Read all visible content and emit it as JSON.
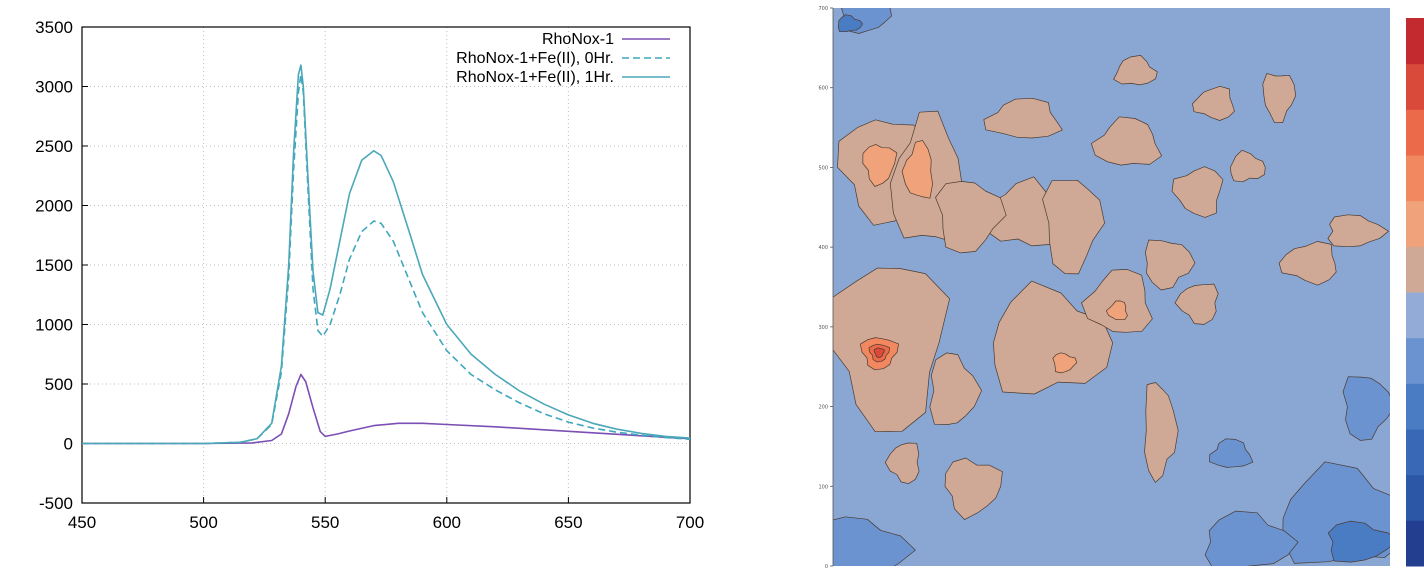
{
  "chart_data": [
    {
      "type": "line",
      "title": "",
      "xlabel": "",
      "ylabel": "",
      "xlim": [
        450,
        700
      ],
      "ylim": [
        -500,
        3500
      ],
      "grid": true,
      "legend_position": "top-right",
      "x_ticks": [
        "450",
        "500",
        "550",
        "600",
        "650",
        "700"
      ],
      "y_ticks": [
        "-500",
        "0",
        "500",
        "1000",
        "1500",
        "2000",
        "2500",
        "3000",
        "3500"
      ],
      "series": [
        {
          "name": "RhoNox-1",
          "color": "#7b4fb3",
          "dash": "solid",
          "x": [
            450,
            500,
            520,
            528,
            532,
            535,
            538,
            540,
            542,
            545,
            548,
            550,
            555,
            560,
            570,
            580,
            590,
            600,
            620,
            640,
            660,
            680,
            700
          ],
          "y": [
            0,
            0,
            5,
            25,
            80,
            250,
            480,
            580,
            520,
            300,
            100,
            60,
            80,
            105,
            150,
            170,
            170,
            160,
            140,
            115,
            90,
            65,
            40
          ]
        },
        {
          "name": "RhoNox-1+Fe(II), 0Hr.",
          "color": "#3fa7bd",
          "dash": "dashed",
          "x": [
            450,
            500,
            515,
            522,
            528,
            532,
            535,
            537,
            539,
            540,
            541,
            543,
            545,
            547,
            549,
            552,
            556,
            560,
            565,
            570,
            573,
            578,
            585,
            590,
            600,
            610,
            620,
            630,
            640,
            650,
            660,
            670,
            680,
            690,
            700
          ],
          "y": [
            0,
            0,
            10,
            40,
            160,
            600,
            1400,
            2300,
            2950,
            3100,
            2950,
            2100,
            1300,
            950,
            900,
            1000,
            1250,
            1550,
            1780,
            1870,
            1850,
            1700,
            1350,
            1100,
            780,
            580,
            450,
            340,
            250,
            180,
            130,
            95,
            70,
            50,
            35
          ]
        },
        {
          "name": "RhoNox-1+Fe(II), 1Hr.",
          "color": "#4ba8b8",
          "dash": "solid",
          "x": [
            450,
            500,
            515,
            522,
            528,
            532,
            535,
            537,
            539,
            540,
            541,
            543,
            545,
            547,
            549,
            552,
            556,
            560,
            565,
            570,
            573,
            578,
            585,
            590,
            600,
            610,
            620,
            630,
            640,
            650,
            660,
            670,
            680,
            690,
            700
          ],
          "y": [
            0,
            0,
            10,
            40,
            170,
            650,
            1500,
            2450,
            3100,
            3180,
            3000,
            2200,
            1450,
            1100,
            1080,
            1300,
            1700,
            2100,
            2380,
            2460,
            2420,
            2200,
            1750,
            1420,
            1000,
            750,
            580,
            440,
            330,
            240,
            170,
            120,
            85,
            60,
            45
          ]
        }
      ]
    },
    {
      "type": "heatmap",
      "title": "",
      "xlabel": "",
      "ylabel": "",
      "xlim": [
        0,
        700
      ],
      "ylim": [
        0,
        700
      ],
      "y_ticks": [
        "0",
        "100",
        "200",
        "300",
        "400",
        "500",
        "600",
        "700"
      ],
      "colorbar_levels": 12,
      "colorbar_colors": [
        "#233d8f",
        "#2c56a6",
        "#3868b6",
        "#4a7cc4",
        "#6b93d0",
        "#93acd7",
        "#cfa995",
        "#f0a27a",
        "#f28860",
        "#ea6a4a",
        "#d94a3a",
        "#c22a30"
      ],
      "background_color": "#8aa7d4",
      "hotspots": [
        {
          "cx": 65,
          "cy": 500,
          "rx": 55,
          "ry": 65,
          "level": 6
        },
        {
          "cx": 58,
          "cy": 505,
          "rx": 20,
          "ry": 25,
          "level": 7
        },
        {
          "cx": 120,
          "cy": 480,
          "rx": 45,
          "ry": 80,
          "level": 6
        },
        {
          "cx": 108,
          "cy": 495,
          "rx": 18,
          "ry": 35,
          "level": 7
        },
        {
          "cx": 70,
          "cy": 280,
          "rx": 70,
          "ry": 105,
          "level": 6
        },
        {
          "cx": 58,
          "cy": 268,
          "rx": 22,
          "ry": 20,
          "level": 8
        },
        {
          "cx": 58,
          "cy": 268,
          "rx": 12,
          "ry": 11,
          "level": 9
        },
        {
          "cx": 58,
          "cy": 268,
          "rx": 6,
          "ry": 6,
          "level": 10
        },
        {
          "cx": 240,
          "cy": 440,
          "rx": 45,
          "ry": 40,
          "level": 6
        },
        {
          "cx": 170,
          "cy": 440,
          "rx": 40,
          "ry": 45,
          "level": 6
        },
        {
          "cx": 300,
          "cy": 430,
          "rx": 35,
          "ry": 60,
          "level": 6
        },
        {
          "cx": 270,
          "cy": 280,
          "rx": 75,
          "ry": 65,
          "level": 6
        },
        {
          "cx": 290,
          "cy": 255,
          "rx": 14,
          "ry": 12,
          "level": 7
        },
        {
          "cx": 360,
          "cy": 330,
          "rx": 40,
          "ry": 40,
          "level": 6
        },
        {
          "cx": 358,
          "cy": 320,
          "rx": 12,
          "ry": 12,
          "level": 7
        },
        {
          "cx": 240,
          "cy": 560,
          "rx": 45,
          "ry": 25,
          "level": 6
        },
        {
          "cx": 370,
          "cy": 530,
          "rx": 40,
          "ry": 30,
          "level": 6
        },
        {
          "cx": 420,
          "cy": 380,
          "rx": 30,
          "ry": 30,
          "level": 6
        },
        {
          "cx": 460,
          "cy": 330,
          "rx": 25,
          "ry": 25,
          "level": 6
        },
        {
          "cx": 520,
          "cy": 500,
          "rx": 22,
          "ry": 18,
          "level": 6
        },
        {
          "cx": 560,
          "cy": 590,
          "rx": 20,
          "ry": 30,
          "level": 6
        },
        {
          "cx": 600,
          "cy": 380,
          "rx": 35,
          "ry": 25,
          "level": 6
        },
        {
          "cx": 655,
          "cy": 420,
          "rx": 35,
          "ry": 20,
          "level": 6
        },
        {
          "cx": 380,
          "cy": 620,
          "rx": 25,
          "ry": 18,
          "level": 6
        },
        {
          "cx": 150,
          "cy": 220,
          "rx": 30,
          "ry": 45,
          "level": 6
        },
        {
          "cx": 175,
          "cy": 100,
          "rx": 35,
          "ry": 35,
          "level": 6
        },
        {
          "cx": 90,
          "cy": 130,
          "rx": 20,
          "ry": 25,
          "level": 6
        },
        {
          "cx": 410,
          "cy": 170,
          "rx": 20,
          "ry": 60,
          "level": 6
        },
        {
          "cx": 460,
          "cy": 470,
          "rx": 30,
          "ry": 30,
          "level": 6
        },
        {
          "cx": 480,
          "cy": 580,
          "rx": 25,
          "ry": 20,
          "level": 6
        }
      ],
      "cold_spots": [
        {
          "cx": 30,
          "cy": 20,
          "rx": 60,
          "ry": 40,
          "level": 4
        },
        {
          "cx": 640,
          "cy": 60,
          "rx": 80,
          "ry": 60,
          "level": 4
        },
        {
          "cx": 660,
          "cy": 30,
          "rx": 40,
          "ry": 25,
          "level": 3
        },
        {
          "cx": 520,
          "cy": 30,
          "rx": 55,
          "ry": 35,
          "level": 4
        },
        {
          "cx": 670,
          "cy": 200,
          "rx": 30,
          "ry": 40,
          "level": 4
        },
        {
          "cx": 40,
          "cy": 690,
          "rx": 30,
          "ry": 20,
          "level": 4
        },
        {
          "cx": 500,
          "cy": 140,
          "rx": 25,
          "ry": 18,
          "level": 4
        },
        {
          "cx": 20,
          "cy": 680,
          "rx": 15,
          "ry": 10,
          "level": 3
        }
      ]
    }
  ]
}
